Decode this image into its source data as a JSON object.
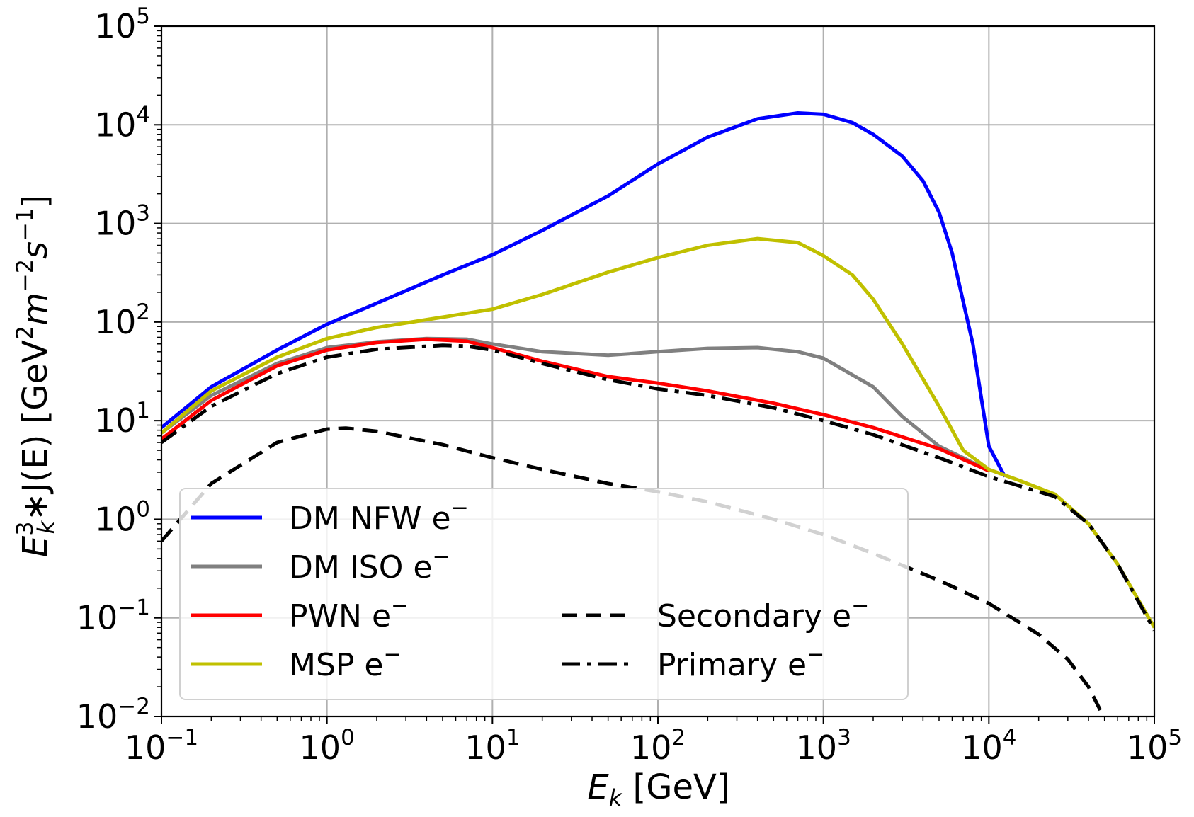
{
  "chart_data": {
    "type": "line",
    "xscale": "log",
    "yscale": "log",
    "xlim": [
      0.1,
      100000
    ],
    "ylim": [
      0.01,
      100000
    ],
    "grid": true,
    "legend_position": "lower-left",
    "xlabel": {
      "base": "E",
      "sub": "k",
      "rest": " [GeV]"
    },
    "ylabel": {
      "base": "E",
      "sup": "3",
      "sub": "k",
      "mid": "∗J(E) [GeV",
      "sup2": "2",
      "m": "m",
      "sup3": "−2",
      "s": "s",
      "sup4": "−1",
      "end": "]"
    },
    "x_ticks": [
      {
        "base": "10",
        "exp": "−1"
      },
      {
        "base": "10",
        "exp": "0"
      },
      {
        "base": "10",
        "exp": "1"
      },
      {
        "base": "10",
        "exp": "2"
      },
      {
        "base": "10",
        "exp": "3"
      },
      {
        "base": "10",
        "exp": "4"
      },
      {
        "base": "10",
        "exp": "5"
      }
    ],
    "y_ticks": [
      {
        "base": "10",
        "exp": "−2"
      },
      {
        "base": "10",
        "exp": "−1"
      },
      {
        "base": "10",
        "exp": "0"
      },
      {
        "base": "10",
        "exp": "1"
      },
      {
        "base": "10",
        "exp": "2"
      },
      {
        "base": "10",
        "exp": "3"
      },
      {
        "base": "10",
        "exp": "4"
      },
      {
        "base": "10",
        "exp": "5"
      }
    ],
    "series": [
      {
        "name": "DM NFW e",
        "sup": "−",
        "color": "#0000ff",
        "style": "solid",
        "x": [
          0.1,
          0.2,
          0.5,
          1,
          2,
          5,
          10,
          20,
          50,
          100,
          200,
          400,
          700,
          1000,
          1500,
          2000,
          3000,
          4000,
          5000,
          6000,
          8000,
          10000,
          12500
        ],
        "y": [
          8.5,
          22,
          52,
          95,
          155,
          300,
          480,
          850,
          1900,
          4000,
          7500,
          11500,
          13200,
          12800,
          10500,
          8000,
          4800,
          2700,
          1300,
          500,
          60,
          5.5,
          2.7
        ]
      },
      {
        "name": "DM ISO e",
        "sup": "−",
        "color": "#808080",
        "style": "solid",
        "x": [
          0.1,
          0.2,
          0.5,
          1,
          2,
          4,
          7,
          10,
          20,
          50,
          100,
          200,
          400,
          700,
          1000,
          2000,
          3000,
          5000,
          7000,
          10000
        ],
        "y": [
          7.5,
          18,
          38,
          55,
          63,
          68,
          67,
          60,
          50,
          46,
          50,
          54,
          55,
          50,
          43,
          22,
          11,
          5.5,
          4.2,
          3.1
        ]
      },
      {
        "name": "PWN e",
        "sup": "−",
        "color": "#ff0000",
        "style": "solid",
        "x": [
          0.1,
          0.2,
          0.5,
          1,
          2,
          4,
          7,
          10,
          20,
          50,
          100,
          200,
          500,
          1000,
          2000,
          5000,
          10000
        ],
        "y": [
          6.5,
          16,
          36,
          52,
          62,
          67,
          64,
          55,
          40,
          28,
          24,
          20,
          15,
          11.5,
          8.5,
          5.2,
          3.1
        ]
      },
      {
        "name": "MSP e",
        "sup": "−",
        "color": "#c0c000",
        "style": "solid",
        "x": [
          0.1,
          0.2,
          0.5,
          1,
          2,
          5,
          10,
          20,
          50,
          100,
          200,
          400,
          700,
          1000,
          1500,
          2000,
          3000,
          5000,
          7000,
          10000,
          15000,
          25000,
          40000,
          60000,
          100000
        ],
        "y": [
          7.5,
          20,
          44,
          68,
          88,
          112,
          135,
          190,
          320,
          450,
          600,
          700,
          640,
          470,
          300,
          170,
          60,
          14,
          5,
          3.2,
          2.5,
          1.8,
          0.9,
          0.35,
          0.08
        ]
      },
      {
        "name": "Secondary e",
        "sup": "−",
        "color": "#000000",
        "style": "dashed",
        "x": [
          0.1,
          0.2,
          0.5,
          1,
          1.3,
          2,
          5,
          10,
          20,
          50,
          100,
          200,
          500,
          1000,
          2000,
          5000,
          10000,
          20000,
          30000,
          40000,
          50000
        ],
        "y": [
          0.6,
          2.3,
          6.0,
          8.2,
          8.4,
          7.8,
          5.7,
          4.2,
          3.2,
          2.3,
          1.9,
          1.5,
          1.0,
          0.7,
          0.45,
          0.24,
          0.14,
          0.068,
          0.038,
          0.02,
          0.0095
        ]
      },
      {
        "name": "Primary e",
        "sup": "−",
        "color": "#000000",
        "style": "dashdot",
        "x": [
          0.1,
          0.2,
          0.5,
          1,
          2,
          5,
          7,
          10,
          20,
          50,
          100,
          200,
          500,
          1000,
          2000,
          5000,
          10000,
          15000,
          25000,
          40000,
          60000,
          100000
        ],
        "y": [
          6.0,
          14,
          30,
          44,
          53,
          58,
          57,
          52,
          38,
          26,
          21,
          18,
          13.5,
          10,
          7.2,
          4.2,
          2.7,
          2.2,
          1.7,
          0.9,
          0.35,
          0.075
        ]
      }
    ]
  }
}
